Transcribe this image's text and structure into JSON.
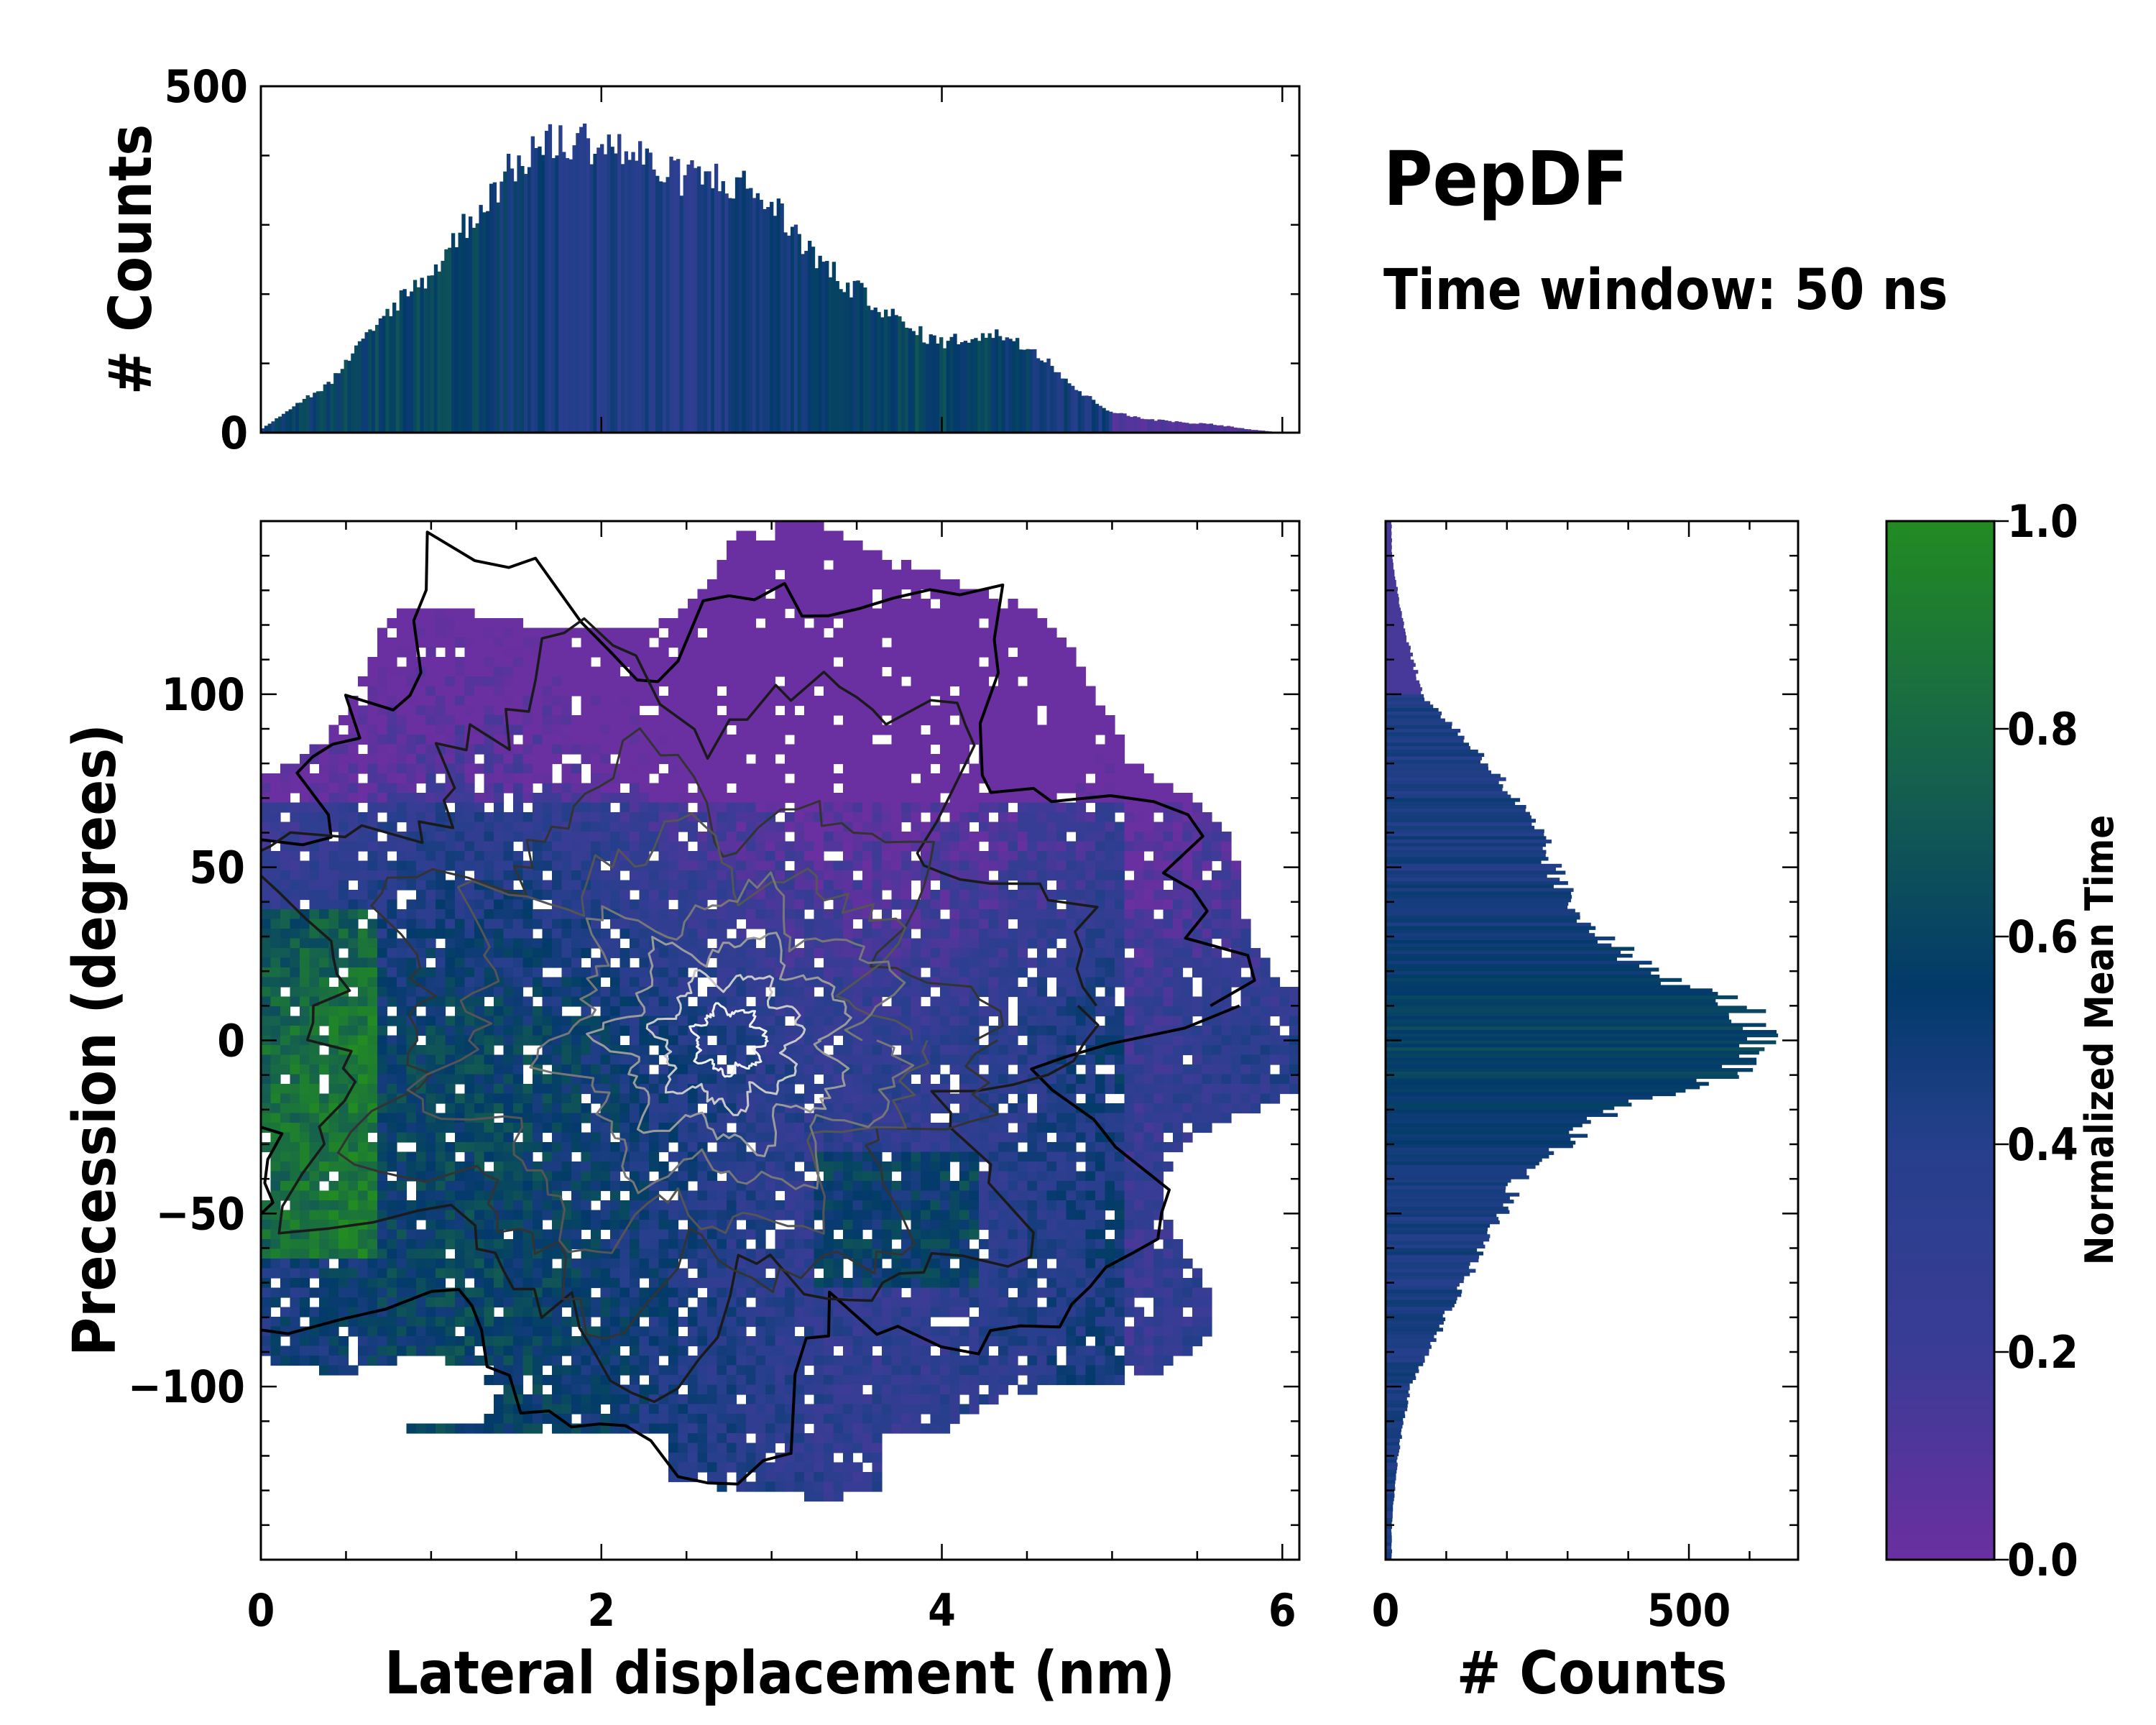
{
  "annotation": {
    "title": "PepDF",
    "subtitle": "Time window: 50 ns"
  },
  "chart_data": [
    {
      "name": "main-2d-histogram",
      "type": "heatmap",
      "xlabel": "Lateral displacement (nm)",
      "ylabel": "Precession (degrees)",
      "xlim": [
        0,
        6.1
      ],
      "ylim": [
        -150,
        150
      ],
      "x_ticks": [
        0,
        2,
        4,
        6
      ],
      "x_tick_labels": [
        "0",
        "2",
        "4",
        "6"
      ],
      "y_ticks": [
        -100,
        -50,
        0,
        50,
        100
      ],
      "y_tick_labels": [
        "−100",
        "−50",
        "0",
        "50",
        "100"
      ],
      "color_meaning": "Normalized Mean Time",
      "contours": "black-to-white density contours, denser near x≈2.5 nm, y≈0°"
    },
    {
      "name": "top-marginal-histogram",
      "type": "bar",
      "ylabel": "# Counts",
      "ylim": [
        0,
        500
      ],
      "y_ticks": [
        0,
        500
      ],
      "y_tick_labels": [
        "0",
        "500"
      ],
      "xlim": [
        0,
        6.1
      ],
      "profile_x": [
        0,
        0.2,
        0.4,
        0.6,
        0.8,
        1.0,
        1.2,
        1.4,
        1.6,
        1.8,
        2.0,
        2.2,
        2.4,
        2.6,
        2.8,
        3.0,
        3.2,
        3.4,
        3.6,
        3.8,
        4.0,
        4.2,
        4.4,
        4.6,
        4.8,
        5.0,
        5.2,
        5.4,
        5.6,
        5.8,
        6.0
      ],
      "profile_counts": [
        5,
        40,
        70,
        130,
        190,
        230,
        300,
        360,
        410,
        420,
        420,
        400,
        370,
        370,
        360,
        330,
        270,
        220,
        190,
        150,
        130,
        140,
        140,
        110,
        60,
        30,
        20,
        15,
        12,
        5,
        0
      ]
    },
    {
      "name": "right-marginal-histogram",
      "type": "bar",
      "orientation": "horizontal",
      "xlabel": "# Counts",
      "xlim": [
        0,
        680
      ],
      "x_ticks": [
        0,
        500
      ],
      "x_tick_labels": [
        "0",
        "500"
      ],
      "ylim": [
        -150,
        150
      ],
      "profile_y": [
        -140,
        -120,
        -100,
        -80,
        -60,
        -40,
        -20,
        -10,
        0,
        10,
        20,
        40,
        60,
        80,
        100,
        120,
        140
      ],
      "profile_counts": [
        10,
        20,
        40,
        100,
        160,
        220,
        370,
        560,
        610,
        590,
        430,
        300,
        250,
        170,
        60,
        30,
        10
      ]
    },
    {
      "name": "colorbar",
      "type": "colorbar",
      "label": "Normalized Mean Time",
      "range": [
        0,
        1
      ],
      "ticks": [
        0.0,
        0.2,
        0.4,
        0.6,
        0.8,
        1.0
      ],
      "tick_labels": [
        "0.0",
        "0.2",
        "0.4",
        "0.6",
        "0.8",
        "1.0"
      ],
      "colors": [
        "#6a2fa0",
        "#3a3c95",
        "#263f8c",
        "#023a6a",
        "#15604e",
        "#228b22"
      ]
    }
  ]
}
